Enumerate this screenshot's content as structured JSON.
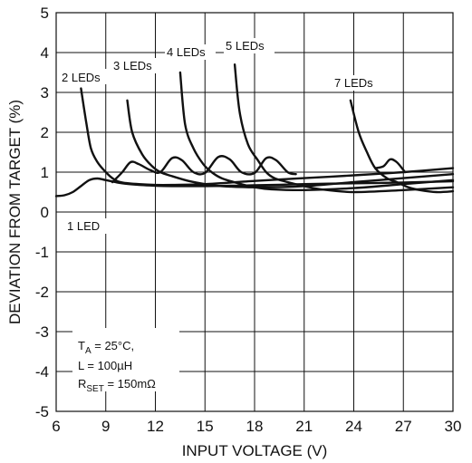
{
  "chart_data": {
    "type": "line",
    "xlabel": "INPUT VOLTAGE (V)",
    "ylabel": "DEVIATION FROM TARGET (%)",
    "xlim": [
      6,
      30
    ],
    "ylim": [
      -5,
      5
    ],
    "x_ticks": [
      "6",
      "9",
      "12",
      "15",
      "18",
      "21",
      "24",
      "27",
      "30"
    ],
    "y_ticks": [
      "5",
      "4",
      "3",
      "2",
      "1",
      "0",
      "-1",
      "-2",
      "-3",
      "-4",
      "-5"
    ],
    "grid": true,
    "conditions": {
      "ta_main": "T",
      "ta_sub": "A",
      "ta_rest": " = 25°C,",
      "l": "L = 100µH",
      "rset_main": "R",
      "rset_sub": "SET",
      "rset_rest": " = 150mΩ"
    },
    "series": [
      {
        "name": "1 LED",
        "x": [
          6,
          6.5,
          7,
          7.5,
          8,
          8.5,
          9,
          10,
          11,
          12,
          13,
          15,
          18,
          21,
          24,
          27,
          30
        ],
        "y": [
          0.4,
          0.42,
          0.5,
          0.65,
          0.8,
          0.84,
          0.8,
          0.72,
          0.68,
          0.66,
          0.65,
          0.65,
          0.67,
          0.7,
          0.72,
          0.74,
          0.77
        ]
      },
      {
        "name": "2 LEDs",
        "x": [
          7.5,
          7.8,
          8.1,
          8.5,
          9,
          9.5,
          10,
          11,
          12,
          13,
          15,
          18,
          21,
          24,
          27,
          30
        ],
        "y": [
          3.1,
          2.3,
          1.6,
          1.25,
          1.0,
          0.82,
          0.74,
          0.7,
          0.68,
          0.68,
          0.7,
          0.78,
          0.85,
          0.92,
          1.0,
          1.1
        ]
      },
      {
        "name": "3 LEDs",
        "x": [
          10.3,
          10.6,
          11.2,
          11.8,
          12.3,
          13,
          14,
          15,
          16,
          18,
          21,
          24,
          27,
          30
        ],
        "y": [
          2.8,
          2.0,
          1.45,
          1.15,
          1.0,
          0.9,
          0.78,
          0.7,
          0.65,
          0.62,
          0.65,
          0.75,
          0.85,
          0.95
        ]
      },
      {
        "name": "4 LEDs",
        "x": [
          13.5,
          13.8,
          14.3,
          14.9,
          15.4,
          16,
          17,
          18,
          19,
          21,
          24,
          27,
          30
        ],
        "y": [
          3.5,
          2.2,
          1.6,
          1.2,
          1.0,
          0.85,
          0.72,
          0.62,
          0.57,
          0.55,
          0.6,
          0.7,
          0.8
        ]
      },
      {
        "name": "5 LEDs",
        "x": [
          16.8,
          17.1,
          17.6,
          18.2,
          18.7,
          19.2,
          20,
          21,
          22,
          24,
          27,
          30
        ],
        "y": [
          3.7,
          2.5,
          1.7,
          1.3,
          1.0,
          0.85,
          0.75,
          0.65,
          0.57,
          0.5,
          0.55,
          0.62
        ]
      },
      {
        "name": "7 LEDs",
        "x": [
          23.8,
          24.3,
          24.8,
          25.3,
          26.0,
          26.6,
          27.3,
          28,
          29,
          30
        ],
        "y": [
          2.8,
          2.0,
          1.5,
          1.1,
          0.85,
          0.75,
          0.62,
          0.55,
          0.5,
          0.52
        ]
      }
    ],
    "ripples": [
      {
        "series": "3 LEDs",
        "x": [
          9.4,
          10,
          10.5,
          11,
          11.7,
          12.3,
          13,
          13.6,
          14.3,
          15,
          15.8,
          16.5,
          17.2,
          18,
          18.7,
          19.3,
          20,
          20.5
        ],
        "y": [
          0.75,
          1.0,
          1.25,
          1.2,
          1.05,
          1.0,
          1.35,
          1.3,
          1.0,
          0.98,
          1.38,
          1.32,
          1.0,
          0.98,
          1.35,
          1.3,
          1.0,
          0.95
        ]
      },
      {
        "series": "7 LEDs",
        "x": [
          25.3,
          25.8,
          26.2,
          26.6,
          27.1
        ],
        "y": [
          1.1,
          1.15,
          1.32,
          1.25,
          1.0
        ]
      }
    ]
  }
}
